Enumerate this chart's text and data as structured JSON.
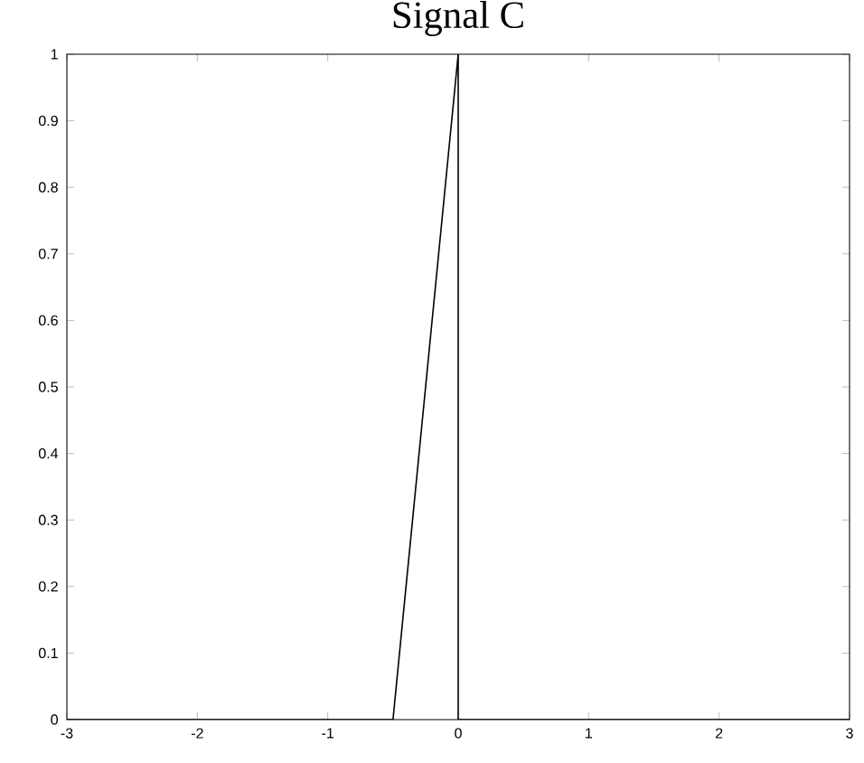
{
  "chart_data": {
    "type": "line",
    "title": "Signal C",
    "x": [
      -3,
      -0.5,
      0,
      0,
      3
    ],
    "values": [
      0,
      0,
      1,
      0,
      0
    ],
    "color": "#000000",
    "xlim": [
      -3,
      3
    ],
    "ylim": [
      0,
      1
    ],
    "xticks": [
      -3,
      -2,
      -1,
      0,
      1,
      2,
      3
    ],
    "yticks": [
      0,
      0.1,
      0.2,
      0.3,
      0.4,
      0.5,
      0.6,
      0.7,
      0.8,
      0.9,
      1
    ]
  }
}
